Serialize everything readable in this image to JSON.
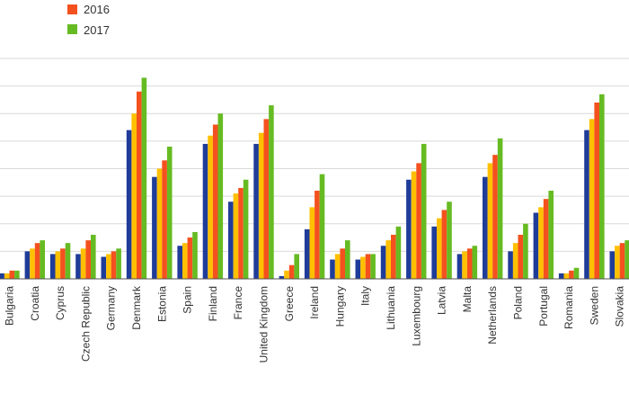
{
  "chart_data": {
    "type": "bar",
    "title": "",
    "xlabel": "",
    "ylabel": "",
    "ylim": [
      0,
      8
    ],
    "grid": true,
    "legend_placement": "top-left",
    "categories": [
      "Bulgaria",
      "Croatia",
      "Cyprus",
      "Czech Republic",
      "Germany",
      "Denmark",
      "Estonia",
      "Spain",
      "Finland",
      "France",
      "United Kingdom",
      "Greece",
      "Ireland",
      "Hungary",
      "Italy",
      "Lithuania",
      "Luxembourg",
      "Latvia",
      "Malta",
      "Netherlands",
      "Poland",
      "Portugal",
      "Romania",
      "Sweden",
      "Slovakia"
    ],
    "series": [
      {
        "name": "",
        "color": "#1f3c99",
        "values": [
          0.2,
          1.0,
          0.9,
          0.9,
          0.8,
          5.4,
          3.7,
          1.2,
          4.9,
          2.8,
          4.9,
          0.1,
          1.8,
          0.7,
          0.7,
          1.2,
          3.6,
          1.9,
          0.9,
          3.7,
          1.0,
          2.4,
          0.2,
          5.4,
          1.0
        ]
      },
      {
        "name": "",
        "color": "#ffc000",
        "values": [
          0.2,
          1.1,
          1.0,
          1.1,
          0.9,
          6.0,
          4.0,
          1.3,
          5.2,
          3.1,
          5.3,
          0.3,
          2.6,
          0.9,
          0.8,
          1.4,
          3.9,
          2.2,
          1.0,
          4.2,
          1.3,
          2.6,
          0.2,
          5.8,
          1.2
        ]
      },
      {
        "name": "2016",
        "color": "#f4511e",
        "values": [
          0.3,
          1.3,
          1.1,
          1.4,
          1.0,
          6.8,
          4.3,
          1.5,
          5.6,
          3.3,
          5.8,
          0.5,
          3.2,
          1.1,
          0.9,
          1.6,
          4.2,
          2.5,
          1.1,
          4.5,
          1.6,
          2.9,
          0.3,
          6.4,
          1.3
        ]
      },
      {
        "name": "2017",
        "color": "#66bb22",
        "values": [
          0.3,
          1.4,
          1.3,
          1.6,
          1.1,
          7.3,
          4.8,
          1.7,
          6.0,
          3.6,
          6.3,
          0.9,
          3.8,
          1.4,
          0.9,
          1.9,
          4.9,
          2.8,
          1.2,
          5.1,
          2.0,
          3.2,
          0.4,
          6.7,
          1.4
        ]
      }
    ]
  },
  "legend": [
    {
      "label": "2016",
      "color": "#f4511e"
    },
    {
      "label": "2017",
      "color": "#66bb22"
    }
  ],
  "colors": {
    "grid": "#d9d9d9",
    "axis": "#555555"
  }
}
